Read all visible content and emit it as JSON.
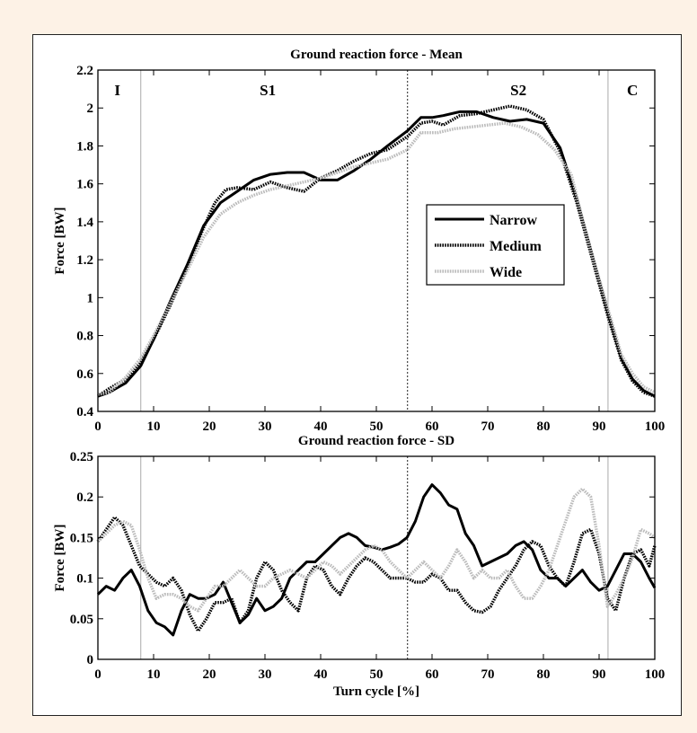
{
  "chart_data": [
    {
      "type": "line",
      "title": "Ground reaction force - Mean",
      "xlabel": "",
      "ylabel": "Force [BW]",
      "xlim": [
        0,
        100
      ],
      "ylim": [
        0.4,
        2.2
      ],
      "xticks": [
        0,
        10,
        20,
        30,
        40,
        50,
        60,
        70,
        80,
        90,
        100
      ],
      "yticks": [
        0.4,
        0.6,
        0.8,
        1,
        1.2,
        1.4,
        1.6,
        1.8,
        2,
        2.2
      ],
      "ytick_labels": [
        "0.4",
        "0.6",
        "0.8",
        "1",
        "1.2",
        "1.4",
        "1.6",
        "1.8",
        "2",
        "2.2"
      ],
      "grid": false,
      "legend_position": "center-right",
      "phase_lines": [
        7.7,
        55.6,
        91.6
      ],
      "phase_labels": [
        {
          "text": "I",
          "x": 3.5
        },
        {
          "text": "S1",
          "x": 30.5
        },
        {
          "text": "S2",
          "x": 75.5
        },
        {
          "text": "C",
          "x": 96
        }
      ],
      "series": [
        {
          "name": "Narrow",
          "color": "#000000",
          "style": "solid",
          "x": [
            0,
            2,
            5,
            7.7,
            10,
            13,
            16,
            19,
            22,
            25,
            28,
            31,
            34,
            37,
            40,
            43,
            46,
            49,
            52,
            55.6,
            58,
            60,
            62,
            65,
            68,
            71,
            74,
            77,
            80,
            83,
            86,
            89,
            91.6,
            94,
            96,
            98,
            100
          ],
          "y": [
            0.48,
            0.5,
            0.55,
            0.64,
            0.78,
            0.98,
            1.17,
            1.38,
            1.5,
            1.56,
            1.62,
            1.65,
            1.66,
            1.66,
            1.62,
            1.62,
            1.67,
            1.73,
            1.8,
            1.88,
            1.95,
            1.95,
            1.96,
            1.98,
            1.98,
            1.95,
            1.93,
            1.94,
            1.92,
            1.79,
            1.52,
            1.2,
            0.92,
            0.68,
            0.57,
            0.51,
            0.48
          ]
        },
        {
          "name": "Medium",
          "color": "#000000",
          "style": "dotted",
          "x": [
            0,
            2,
            5,
            7.7,
            10,
            13,
            16,
            19,
            21,
            23,
            25,
            28,
            31,
            34,
            37,
            40,
            43,
            46,
            49,
            52,
            55.6,
            58,
            60,
            62,
            65,
            68,
            71,
            74,
            77,
            80,
            83,
            86,
            89,
            91.6,
            94,
            96,
            98,
            100
          ],
          "y": [
            0.48,
            0.52,
            0.57,
            0.66,
            0.78,
            0.96,
            1.16,
            1.37,
            1.5,
            1.57,
            1.58,
            1.57,
            1.61,
            1.58,
            1.56,
            1.63,
            1.67,
            1.72,
            1.76,
            1.78,
            1.85,
            1.92,
            1.93,
            1.91,
            1.96,
            1.97,
            1.99,
            2.01,
            1.99,
            1.94,
            1.77,
            1.5,
            1.18,
            0.9,
            0.67,
            0.56,
            0.5,
            0.48
          ]
        },
        {
          "name": "Wide",
          "color": "#bbbbbb",
          "style": "dotted",
          "x": [
            0,
            2,
            5,
            7.7,
            10,
            13,
            16,
            19,
            22,
            25,
            28,
            31,
            34,
            37,
            40,
            43,
            46,
            49,
            52,
            55.6,
            58,
            61,
            64,
            67,
            70,
            73,
            76,
            79,
            82,
            85,
            88,
            91.6,
            94,
            96,
            98,
            100
          ],
          "y": [
            0.49,
            0.5,
            0.58,
            0.68,
            0.8,
            0.97,
            1.14,
            1.32,
            1.44,
            1.5,
            1.54,
            1.57,
            1.59,
            1.61,
            1.63,
            1.66,
            1.69,
            1.71,
            1.73,
            1.78,
            1.87,
            1.87,
            1.89,
            1.9,
            1.91,
            1.92,
            1.9,
            1.86,
            1.78,
            1.65,
            1.3,
            0.94,
            0.7,
            0.6,
            0.53,
            0.5
          ]
        }
      ]
    },
    {
      "type": "line",
      "title": "Ground reaction force - SD",
      "xlabel": "Turn cycle [%]",
      "ylabel": "Force [BW]",
      "xlim": [
        0,
        100
      ],
      "ylim": [
        0,
        0.25
      ],
      "xticks": [
        0,
        10,
        20,
        30,
        40,
        50,
        60,
        70,
        80,
        90,
        100
      ],
      "yticks": [
        0,
        0.05,
        0.1,
        0.15,
        0.2,
        0.25
      ],
      "ytick_labels": [
        "0",
        "0.05",
        "0.1",
        "0.15",
        "0.2",
        "0.25"
      ],
      "grid": false,
      "phase_lines": [
        7.7,
        55.6,
        91.6
      ],
      "series": [
        {
          "name": "Narrow",
          "color": "#000000",
          "style": "solid",
          "x": [
            0,
            1.5,
            3,
            4.5,
            6,
            7.5,
            9,
            10.5,
            12,
            13.5,
            15,
            16.5,
            18,
            19.5,
            21,
            22.5,
            24,
            25.5,
            27,
            28.5,
            30,
            31.5,
            33,
            34.5,
            36,
            37.5,
            39,
            40.5,
            42,
            43.5,
            45,
            46.5,
            48,
            49.5,
            51,
            52.5,
            54,
            55.5,
            57,
            58.5,
            60,
            61.5,
            63,
            64.5,
            66,
            67.5,
            69,
            70.5,
            72,
            73.5,
            75,
            76.5,
            78,
            79.5,
            81,
            82.5,
            84,
            85.5,
            87,
            88.5,
            90,
            91.5,
            93,
            94.5,
            96,
            97.5,
            99,
            100
          ],
          "y": [
            0.08,
            0.09,
            0.085,
            0.1,
            0.11,
            0.09,
            0.06,
            0.045,
            0.04,
            0.03,
            0.06,
            0.08,
            0.075,
            0.075,
            0.08,
            0.095,
            0.07,
            0.045,
            0.055,
            0.075,
            0.06,
            0.065,
            0.075,
            0.1,
            0.11,
            0.12,
            0.12,
            0.13,
            0.14,
            0.15,
            0.155,
            0.15,
            0.14,
            0.138,
            0.135,
            0.138,
            0.142,
            0.15,
            0.17,
            0.2,
            0.215,
            0.205,
            0.19,
            0.185,
            0.155,
            0.14,
            0.115,
            0.12,
            0.125,
            0.13,
            0.14,
            0.145,
            0.135,
            0.11,
            0.1,
            0.1,
            0.09,
            0.1,
            0.11,
            0.095,
            0.085,
            0.09,
            0.11,
            0.13,
            0.13,
            0.12,
            0.1,
            0.088
          ]
        },
        {
          "name": "Medium",
          "color": "#000000",
          "style": "dotted",
          "x": [
            0,
            1.5,
            3,
            4.5,
            6,
            7.5,
            9,
            10.5,
            12,
            13.5,
            15,
            16.5,
            18,
            19.5,
            21,
            22.5,
            24,
            25.5,
            27,
            28.5,
            30,
            31.5,
            33,
            34.5,
            36,
            37.5,
            39,
            40.5,
            42,
            43.5,
            45,
            46.5,
            48,
            49.5,
            51,
            52.5,
            54,
            55.5,
            57,
            58.5,
            60,
            61.5,
            63,
            64.5,
            66,
            67.5,
            69,
            70.5,
            72,
            73.5,
            75,
            76.5,
            78,
            79.5,
            81,
            82.5,
            84,
            85.5,
            87,
            88.5,
            90,
            91.5,
            93,
            94.5,
            96,
            97.5,
            99,
            100
          ],
          "y": [
            0.145,
            0.16,
            0.175,
            0.165,
            0.14,
            0.115,
            0.105,
            0.095,
            0.09,
            0.1,
            0.085,
            0.055,
            0.035,
            0.05,
            0.07,
            0.07,
            0.075,
            0.045,
            0.06,
            0.1,
            0.12,
            0.11,
            0.085,
            0.07,
            0.06,
            0.1,
            0.115,
            0.11,
            0.09,
            0.08,
            0.1,
            0.115,
            0.125,
            0.12,
            0.11,
            0.1,
            0.1,
            0.1,
            0.095,
            0.095,
            0.105,
            0.1,
            0.085,
            0.085,
            0.07,
            0.06,
            0.058,
            0.065,
            0.085,
            0.1,
            0.115,
            0.135,
            0.145,
            0.14,
            0.115,
            0.1,
            0.09,
            0.12,
            0.155,
            0.16,
            0.13,
            0.075,
            0.06,
            0.1,
            0.13,
            0.135,
            0.115,
            0.14
          ]
        },
        {
          "name": "Wide",
          "color": "#bbbbbb",
          "style": "dotted",
          "x": [
            0,
            1.5,
            3,
            4.5,
            6,
            7.5,
            9,
            10.5,
            12,
            13.5,
            15,
            16.5,
            18,
            19.5,
            21,
            22.5,
            24,
            25.5,
            27,
            28.5,
            30,
            31.5,
            33,
            34.5,
            36,
            37.5,
            39,
            40.5,
            42,
            43.5,
            45,
            46.5,
            48,
            49.5,
            51,
            52.5,
            54,
            55.5,
            57,
            58.5,
            60,
            61.5,
            63,
            64.5,
            66,
            67.5,
            69,
            70.5,
            72,
            73.5,
            75,
            76.5,
            78,
            79.5,
            81,
            82.5,
            84,
            85.5,
            87,
            88.5,
            90,
            91.5,
            93,
            94.5,
            96,
            97.5,
            99,
            100
          ],
          "y": [
            0.145,
            0.155,
            0.165,
            0.17,
            0.165,
            0.135,
            0.1,
            0.075,
            0.08,
            0.08,
            0.075,
            0.065,
            0.06,
            0.075,
            0.09,
            0.09,
            0.1,
            0.11,
            0.1,
            0.09,
            0.09,
            0.1,
            0.105,
            0.11,
            0.105,
            0.1,
            0.11,
            0.12,
            0.115,
            0.105,
            0.115,
            0.125,
            0.135,
            0.14,
            0.135,
            0.12,
            0.11,
            0.1,
            0.11,
            0.12,
            0.11,
            0.1,
            0.115,
            0.135,
            0.12,
            0.1,
            0.11,
            0.1,
            0.1,
            0.11,
            0.09,
            0.075,
            0.075,
            0.09,
            0.11,
            0.14,
            0.17,
            0.2,
            0.21,
            0.2,
            0.14,
            0.065,
            0.08,
            0.1,
            0.125,
            0.16,
            0.155,
            0.15
          ]
        }
      ]
    }
  ]
}
